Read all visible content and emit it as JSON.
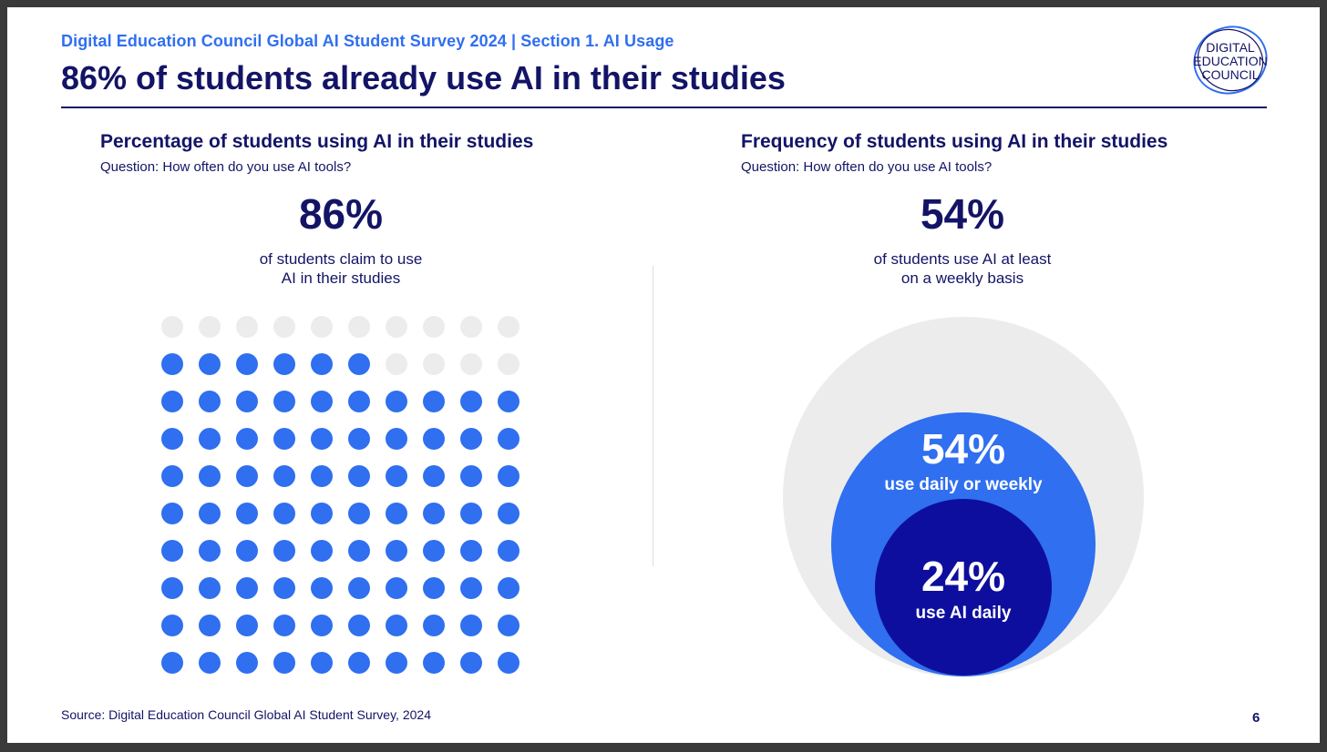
{
  "header": {
    "supertitle": "Digital Education Council Global AI Student Survey 2024 | Section 1. AI Usage",
    "title": "86% of students already use AI in their studies",
    "logo_lines": [
      "DIGITAL",
      "EDUCATION",
      "COUNCIL"
    ]
  },
  "left_panel": {
    "heading": "Percentage of students using AI in their studies",
    "question": "Question: How often do you use AI tools?",
    "big_stat": "86%",
    "description_line1": "of students claim to use",
    "description_line2": "AI in their studies"
  },
  "right_panel": {
    "heading": "Frequency of students using AI in their studies",
    "question": "Question: How often do you use AI tools?",
    "big_stat": "54%",
    "description_line1": "of students use AI at least",
    "description_line2": "on a weekly basis"
  },
  "chart_data": [
    {
      "type": "waffle",
      "grid": [
        10,
        10
      ],
      "filled": 86,
      "total": 100,
      "filled_color": "#2f6ff0",
      "empty_color": "#ececec",
      "title": "Percentage of students using AI in their studies"
    },
    {
      "type": "nested-circles",
      "title": "Frequency of students using AI in their studies",
      "series": [
        {
          "name": "total",
          "value": 100,
          "color": "#ececec"
        },
        {
          "name": "use daily or weekly",
          "value": 54,
          "label": "54%",
          "color": "#2f6ff0"
        },
        {
          "name": "use AI daily",
          "value": 24,
          "label": "24%",
          "color": "#0e0e9e"
        }
      ]
    }
  ],
  "footer": {
    "source": "Source: Digital Education Council Global AI Student Survey, 2024",
    "page_number": "6"
  },
  "colors": {
    "navy": "#131466",
    "accent_blue": "#2f6ff0",
    "deep_blue": "#0e0e9e",
    "light_gray": "#ececec"
  }
}
